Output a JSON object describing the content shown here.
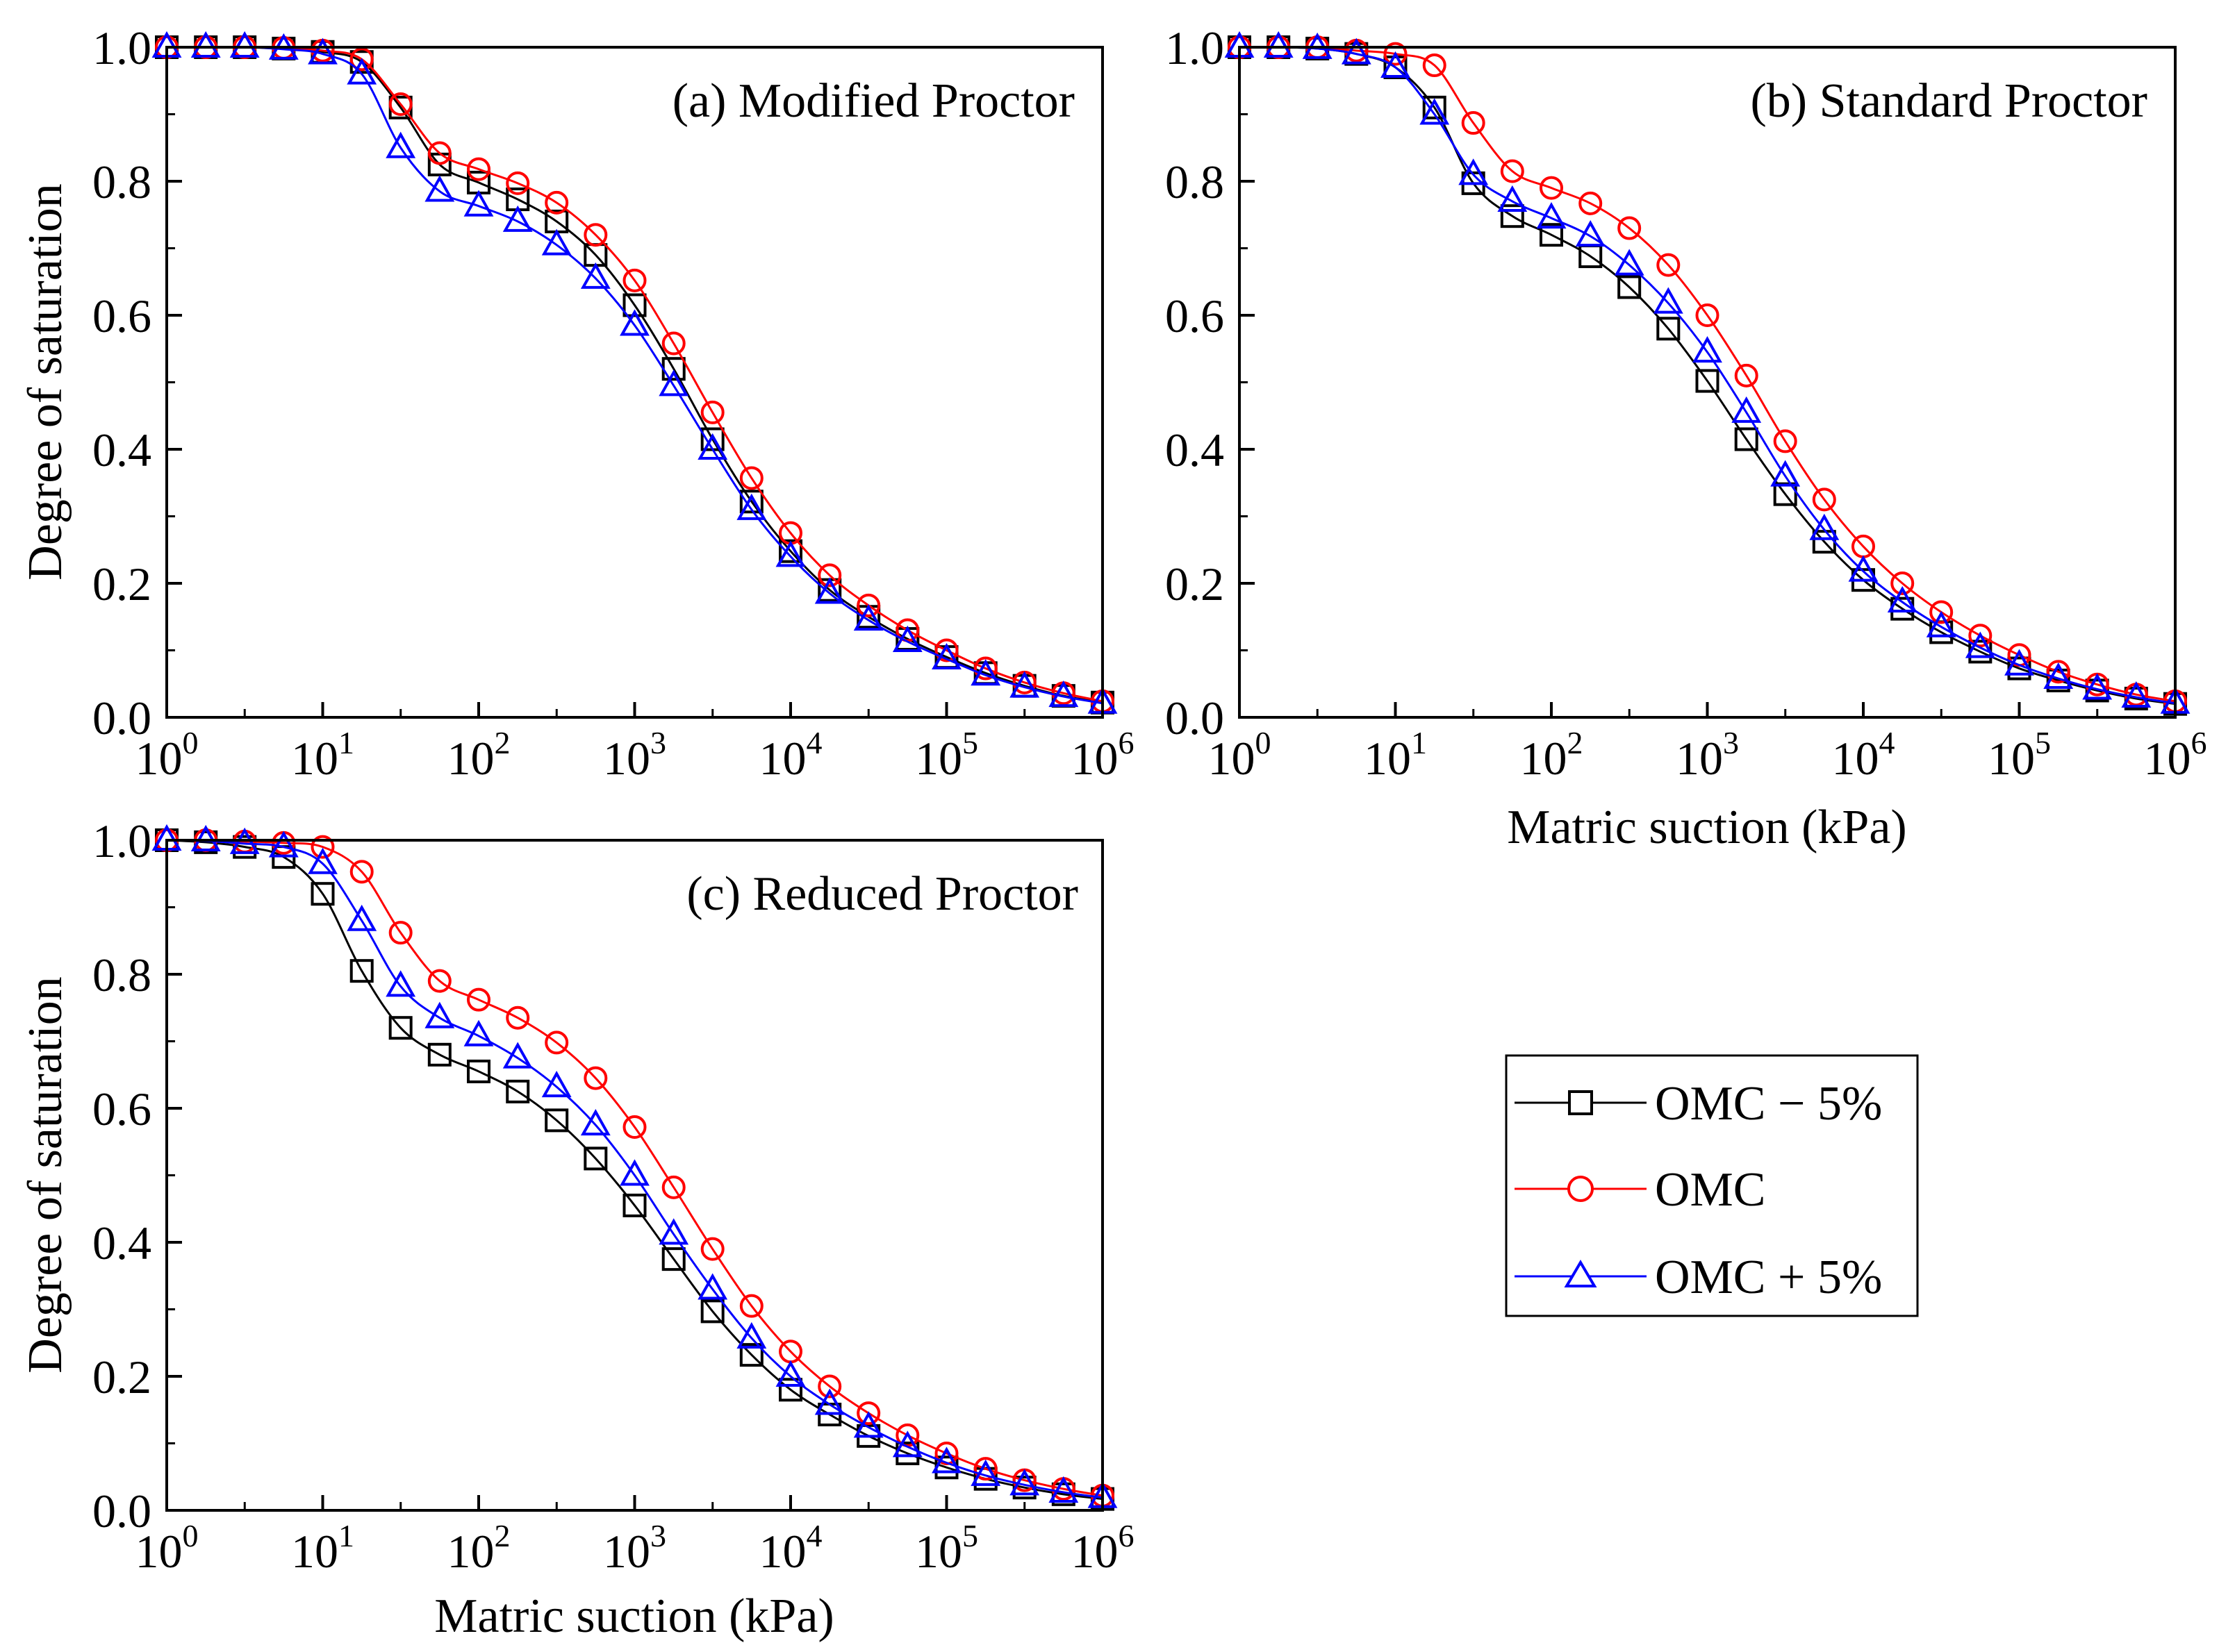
{
  "figure": {
    "x_axis_title": "Matric suction (kPa)",
    "y_axis_title": "Degree of saturation"
  },
  "legend": {
    "items": [
      {
        "label": "OMC − 5%",
        "color": "#000000",
        "marker": "square-icon"
      },
      {
        "label": "OMC",
        "color": "#ff0000",
        "marker": "circle-icon"
      },
      {
        "label": "OMC + 5%",
        "color": "#0000ff",
        "marker": "triangle-icon"
      }
    ]
  },
  "chart_data": [
    {
      "type": "line",
      "title": "(a) Modified Proctor",
      "xlabel": "",
      "ylabel": "Degree of saturation",
      "xscale": "log",
      "xlim": [
        1,
        1000000
      ],
      "ylim": [
        0.0,
        1.0
      ],
      "x_tick_labels": [
        {
          "base": "10",
          "exp": "0"
        },
        {
          "base": "10",
          "exp": "1"
        },
        {
          "base": "10",
          "exp": "2"
        },
        {
          "base": "10",
          "exp": "3"
        },
        {
          "base": "10",
          "exp": "4"
        },
        {
          "base": "10",
          "exp": "5"
        },
        {
          "base": "10",
          "exp": "6"
        }
      ],
      "y_tick_labels": [
        "0.0",
        "0.2",
        "0.4",
        "0.6",
        "0.8",
        "1.0"
      ],
      "x": [
        1,
        1.78,
        3.16,
        5.62,
        10,
        17.8,
        31.6,
        56.2,
        100,
        178,
        316,
        562,
        1000,
        1780,
        3160,
        5620,
        10000,
        17800,
        31600,
        56200,
        100000,
        178000,
        316000,
        562000,
        1000000
      ],
      "series": [
        {
          "name": "OMC − 5%",
          "values": [
            1.0,
            1.0,
            1.0,
            0.998,
            0.993,
            0.978,
            0.91,
            0.825,
            0.798,
            0.773,
            0.74,
            0.69,
            0.615,
            0.52,
            0.415,
            0.322,
            0.248,
            0.19,
            0.15,
            0.117,
            0.09,
            0.066,
            0.047,
            0.032,
            0.022
          ]
        },
        {
          "name": "OMC",
          "values": [
            1.0,
            1.0,
            1.0,
            0.999,
            0.995,
            0.982,
            0.915,
            0.842,
            0.818,
            0.797,
            0.768,
            0.72,
            0.652,
            0.558,
            0.455,
            0.357,
            0.275,
            0.212,
            0.167,
            0.13,
            0.1,
            0.073,
            0.052,
            0.036,
            0.024
          ]
        },
        {
          "name": "OMC + 5%",
          "values": [
            1.0,
            1.0,
            1.0,
            0.997,
            0.99,
            0.96,
            0.85,
            0.785,
            0.763,
            0.74,
            0.705,
            0.655,
            0.585,
            0.495,
            0.4,
            0.31,
            0.24,
            0.185,
            0.145,
            0.113,
            0.087,
            0.063,
            0.045,
            0.031,
            0.021
          ]
        }
      ]
    },
    {
      "type": "line",
      "title": "(b) Standard Proctor",
      "xlabel": "Matric suction (kPa)",
      "ylabel": "",
      "xscale": "log",
      "xlim": [
        1,
        1000000
      ],
      "ylim": [
        0.0,
        1.0
      ],
      "x_tick_labels": [
        {
          "base": "10",
          "exp": "0"
        },
        {
          "base": "10",
          "exp": "1"
        },
        {
          "base": "10",
          "exp": "2"
        },
        {
          "base": "10",
          "exp": "3"
        },
        {
          "base": "10",
          "exp": "4"
        },
        {
          "base": "10",
          "exp": "5"
        },
        {
          "base": "10",
          "exp": "6"
        }
      ],
      "y_tick_labels": [
        "0.0",
        "0.2",
        "0.4",
        "0.6",
        "0.8",
        "1.0"
      ],
      "x": [
        1,
        1.78,
        3.16,
        5.62,
        10,
        17.8,
        31.6,
        56.2,
        100,
        178,
        316,
        562,
        1000,
        1780,
        3160,
        5620,
        10000,
        17800,
        31600,
        56200,
        100000,
        178000,
        316000,
        562000,
        1000000
      ],
      "series": [
        {
          "name": "OMC − 5%",
          "values": [
            1.0,
            1.0,
            0.998,
            0.99,
            0.97,
            0.91,
            0.797,
            0.748,
            0.72,
            0.688,
            0.642,
            0.58,
            0.502,
            0.415,
            0.333,
            0.262,
            0.205,
            0.162,
            0.127,
            0.098,
            0.073,
            0.055,
            0.04,
            0.028,
            0.02
          ]
        },
        {
          "name": "OMC",
          "values": [
            1.0,
            1.0,
            1.0,
            0.995,
            0.99,
            0.973,
            0.887,
            0.815,
            0.79,
            0.767,
            0.73,
            0.675,
            0.6,
            0.51,
            0.412,
            0.325,
            0.255,
            0.2,
            0.157,
            0.122,
            0.093,
            0.068,
            0.049,
            0.034,
            0.024
          ]
        },
        {
          "name": "OMC + 5%",
          "values": [
            1.0,
            1.0,
            0.998,
            0.99,
            0.97,
            0.9,
            0.81,
            0.77,
            0.745,
            0.718,
            0.675,
            0.618,
            0.545,
            0.455,
            0.36,
            0.28,
            0.218,
            0.172,
            0.135,
            0.104,
            0.078,
            0.058,
            0.042,
            0.03,
            0.021
          ]
        }
      ]
    },
    {
      "type": "line",
      "title": "(c) Reduced Proctor",
      "xlabel": "Matric suction (kPa)",
      "ylabel": "Degree of saturation",
      "xscale": "log",
      "xlim": [
        1,
        1000000
      ],
      "ylim": [
        0.0,
        1.0
      ],
      "x_tick_labels": [
        {
          "base": "10",
          "exp": "0"
        },
        {
          "base": "10",
          "exp": "1"
        },
        {
          "base": "10",
          "exp": "2"
        },
        {
          "base": "10",
          "exp": "3"
        },
        {
          "base": "10",
          "exp": "4"
        },
        {
          "base": "10",
          "exp": "5"
        },
        {
          "base": "10",
          "exp": "6"
        }
      ],
      "y_tick_labels": [
        "0.0",
        "0.2",
        "0.4",
        "0.6",
        "0.8",
        "1.0"
      ],
      "x": [
        1,
        1.78,
        3.16,
        5.62,
        10,
        17.8,
        31.6,
        56.2,
        100,
        178,
        316,
        562,
        1000,
        1780,
        3160,
        5620,
        10000,
        17800,
        31600,
        56200,
        100000,
        178000,
        316000,
        562000,
        1000000
      ],
      "series": [
        {
          "name": "OMC − 5%",
          "values": [
            1.0,
            0.997,
            0.99,
            0.975,
            0.92,
            0.805,
            0.72,
            0.68,
            0.655,
            0.625,
            0.582,
            0.525,
            0.455,
            0.375,
            0.297,
            0.232,
            0.18,
            0.143,
            0.111,
            0.085,
            0.064,
            0.047,
            0.034,
            0.024,
            0.017
          ]
        },
        {
          "name": "OMC",
          "values": [
            1.0,
            1.0,
            0.998,
            0.996,
            0.99,
            0.953,
            0.862,
            0.79,
            0.762,
            0.735,
            0.698,
            0.645,
            0.572,
            0.482,
            0.39,
            0.305,
            0.237,
            0.185,
            0.145,
            0.112,
            0.085,
            0.062,
            0.045,
            0.032,
            0.022
          ]
        },
        {
          "name": "OMC + 5%",
          "values": [
            1.0,
            0.999,
            0.995,
            0.99,
            0.965,
            0.88,
            0.782,
            0.735,
            0.708,
            0.675,
            0.632,
            0.575,
            0.5,
            0.412,
            0.33,
            0.257,
            0.2,
            0.158,
            0.124,
            0.095,
            0.071,
            0.052,
            0.038,
            0.027,
            0.019
          ]
        }
      ]
    }
  ]
}
